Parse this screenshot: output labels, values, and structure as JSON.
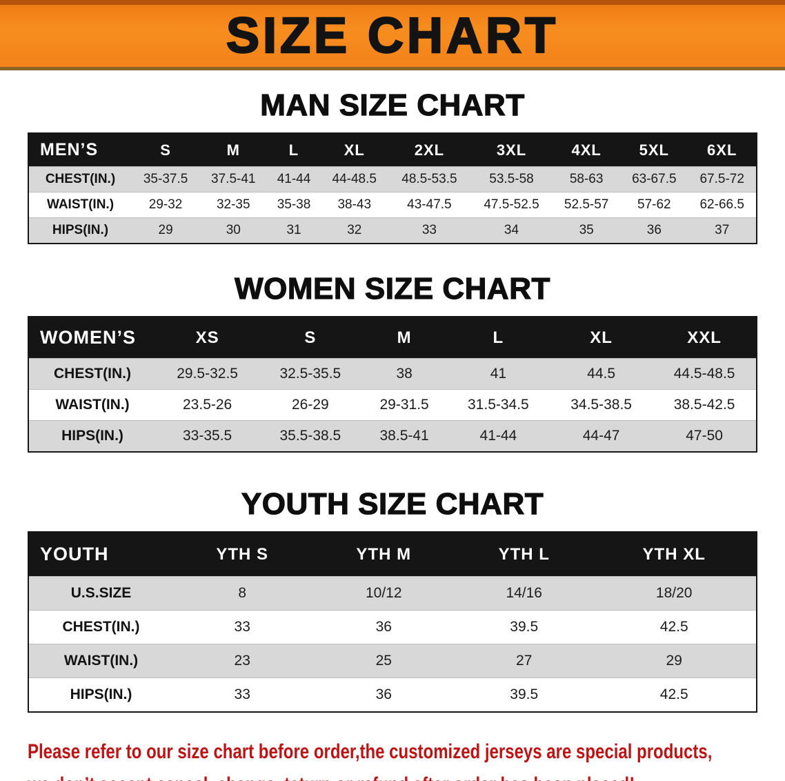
{
  "banner": {
    "title": "SIZE CHART",
    "bg_color": "#f2821a"
  },
  "sections": [
    {
      "id": "men",
      "heading": "MAN SIZE CHART",
      "table": {
        "corner_label": "MEN’S",
        "columns": [
          "S",
          "M",
          "L",
          "XL",
          "2XL",
          "3XL",
          "4XL",
          "5XL",
          "6XL"
        ],
        "rows": [
          {
            "label": "CHEST(IN.)",
            "values": [
              "35-37.5",
              "37.5-41",
              "41-44",
              "44-48.5",
              "48.5-53.5",
              "53.5-58",
              "58-63",
              "63-67.5",
              "67.5-72"
            ]
          },
          {
            "label": "WAIST(IN.)",
            "values": [
              "29-32",
              "32-35",
              "35-38",
              "38-43",
              "43-47.5",
              "47.5-52.5",
              "52.5-57",
              "57-62",
              "62-66.5"
            ]
          },
          {
            "label": "HIPS(IN.)",
            "values": [
              "29",
              "30",
              "31",
              "32",
              "33",
              "34",
              "35",
              "36",
              "37"
            ]
          }
        ]
      }
    },
    {
      "id": "women",
      "heading": "WOMEN SIZE CHART",
      "table": {
        "corner_label": "WOMEN’S",
        "columns": [
          "XS",
          "S",
          "M",
          "L",
          "XL",
          "XXL"
        ],
        "rows": [
          {
            "label": "CHEST(IN.)",
            "values": [
              "29.5-32.5",
              "32.5-35.5",
              "38",
              "41",
              "44.5",
              "44.5-48.5"
            ]
          },
          {
            "label": "WAIST(IN.)",
            "values": [
              "23.5-26",
              "26-29",
              "29-31.5",
              "31.5-34.5",
              "34.5-38.5",
              "38.5-42.5"
            ]
          },
          {
            "label": "HIPS(IN.)",
            "values": [
              "33-35.5",
              "35.5-38.5",
              "38.5-41",
              "41-44",
              "44-47",
              "47-50"
            ]
          }
        ]
      }
    },
    {
      "id": "youth",
      "heading": "YOUTH SIZE CHART",
      "table": {
        "corner_label": "YOUTH",
        "columns": [
          "YTH S",
          "YTH M",
          "YTH L",
          "YTH XL"
        ],
        "rows": [
          {
            "label": "U.S.SIZE",
            "values": [
              "8",
              "10/12",
              "14/16",
              "18/20"
            ]
          },
          {
            "label": "CHEST(IN.)",
            "values": [
              "33",
              "36",
              "39.5",
              "42.5"
            ]
          },
          {
            "label": "WAIST(IN.)",
            "values": [
              "23",
              "25",
              "27",
              "29"
            ]
          },
          {
            "label": "HIPS(IN.)",
            "values": [
              "33",
              "36",
              "39.5",
              "42.5"
            ]
          }
        ]
      }
    }
  ],
  "footer": {
    "lines": [
      "Please refer to our size chart before order,the customized jerseys are special products,",
      "we don’t accept cancel, change, teturn or refund after order has been placed!"
    ],
    "text_color": "#c01212"
  }
}
